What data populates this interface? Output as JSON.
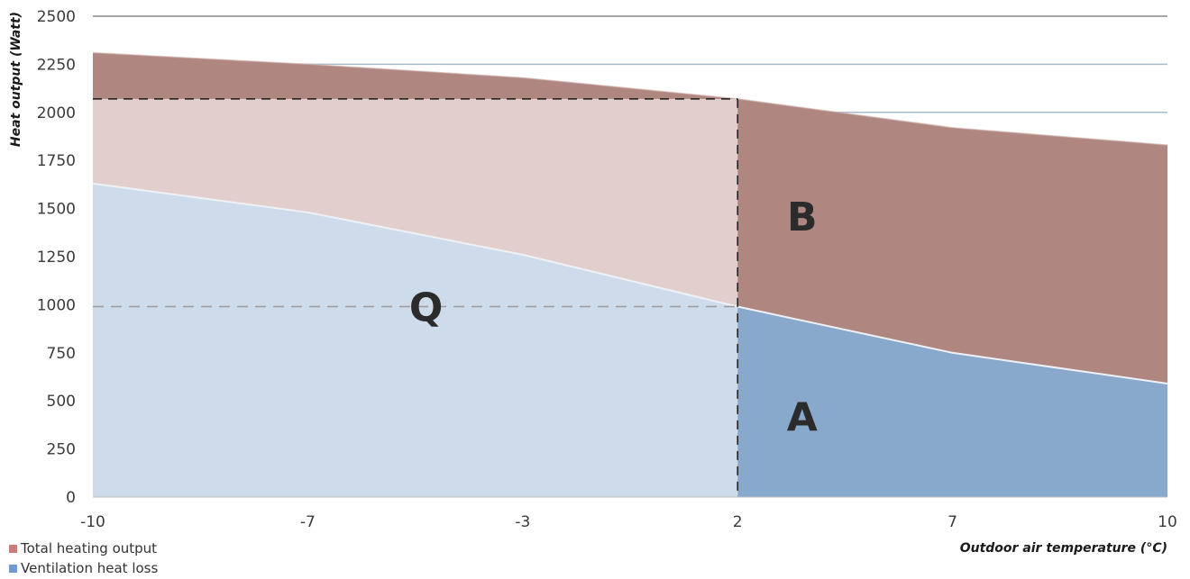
{
  "chart_data": {
    "type": "area",
    "x": [
      -10,
      -7,
      -3,
      2,
      7,
      10
    ],
    "xlabel": "Outdoor air temperature (°C)",
    "ylabel": "Heat output (Watt)",
    "ylim": [
      0,
      2500
    ],
    "yticks": [
      "0",
      "250",
      "500",
      "750",
      "1000",
      "1250",
      "1500",
      "1750",
      "2000",
      "2250",
      "2500"
    ],
    "xticks": [
      "-10",
      "-7",
      "-3",
      "2",
      "7",
      "10"
    ],
    "grid": true,
    "series": [
      {
        "name": "Total heating output",
        "values": [
          2310,
          2250,
          2180,
          2070,
          1920,
          1830
        ]
      },
      {
        "name": "Ventilation heat loss",
        "values": [
          1630,
          1480,
          1260,
          990,
          750,
          590
        ]
      }
    ],
    "reference": {
      "x": 2,
      "total_y": 2070,
      "loss_y": 990
    },
    "annotations": [
      {
        "text": "Q",
        "x": -4.8,
        "y": 990
      },
      {
        "text": "B",
        "x": 3.5,
        "y": 1460
      },
      {
        "text": "A",
        "x": 3.5,
        "y": 420
      }
    ],
    "colors": {
      "total_dark": "#b08680",
      "total_light": "#e2cecc",
      "loss_dark": "#88a8cc",
      "loss_light": "#cedbea",
      "legend_total": "#c97c79",
      "legend_loss": "#6f9bd0",
      "grid_top": "#8a8a8a",
      "grid": "#a9bccb"
    },
    "legend_position": "bottom-left"
  }
}
